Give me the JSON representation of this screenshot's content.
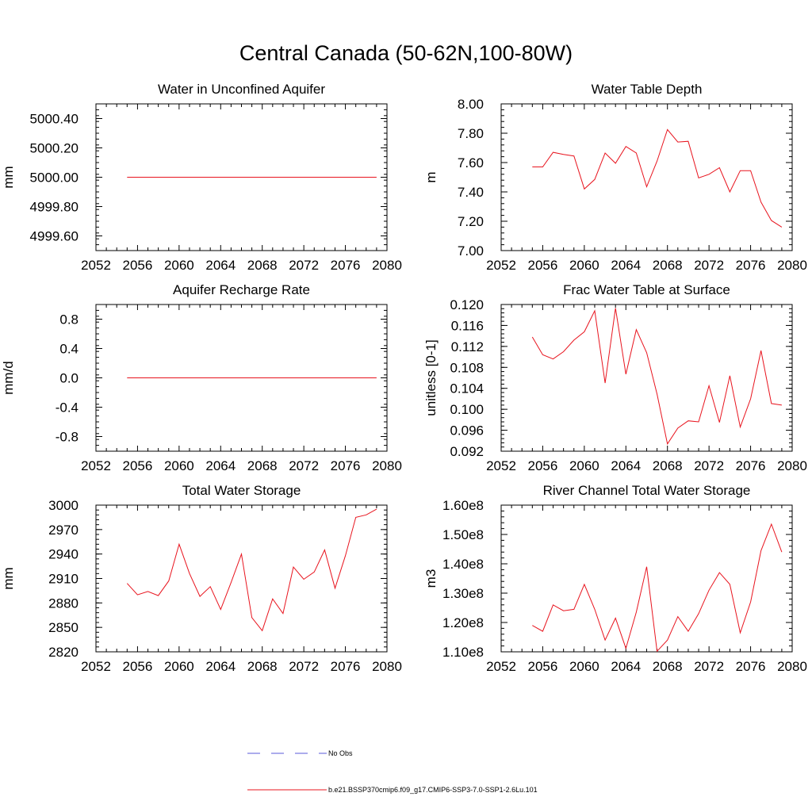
{
  "page": {
    "title": "Central Canada (50-62N,100-80W)"
  },
  "legend": {
    "items": [
      {
        "label": "No Obs",
        "color": "#5a5ad8",
        "dash": "dashed"
      },
      {
        "label": "b.e21.BSSP370cmip6.f09_g17.CMIP6-SSP3-7.0-SSP1-2.6Lu.101",
        "color": "#e8141e",
        "dash": "solid"
      }
    ]
  },
  "chart_data": [
    {
      "type": "line",
      "title": "Water in Unconfined Aquifer",
      "ylabel": "mm",
      "xlim": [
        2052,
        2080
      ],
      "ylim": [
        4999.5,
        5000.5
      ],
      "xticks": [
        "2052",
        "2056",
        "2060",
        "2064",
        "2068",
        "2072",
        "2076",
        "2080"
      ],
      "yticks": [
        "4999.60",
        "4999.80",
        "5000.00",
        "5000.20",
        "5000.40"
      ],
      "ytick_values": [
        4999.6,
        4999.8,
        5000.0,
        5000.2,
        5000.4
      ],
      "series": [
        {
          "color": "#e8141e",
          "x": [
            2055,
            2056,
            2057,
            2058,
            2059,
            2060,
            2061,
            2062,
            2063,
            2064,
            2065,
            2066,
            2067,
            2068,
            2069,
            2070,
            2071,
            2072,
            2073,
            2074,
            2075,
            2076,
            2077,
            2078,
            2079
          ],
          "y": [
            5000,
            5000,
            5000,
            5000,
            5000,
            5000,
            5000,
            5000,
            5000,
            5000,
            5000,
            5000,
            5000,
            5000,
            5000,
            5000,
            5000,
            5000,
            5000,
            5000,
            5000,
            5000,
            5000,
            5000,
            5000
          ]
        }
      ]
    },
    {
      "type": "line",
      "title": "Water Table Depth",
      "ylabel": "m",
      "xlim": [
        2052,
        2080
      ],
      "ylim": [
        7.0,
        8.0
      ],
      "xticks": [
        "2052",
        "2056",
        "2060",
        "2064",
        "2068",
        "2072",
        "2076",
        "2080"
      ],
      "yticks": [
        "7.00",
        "7.20",
        "7.40",
        "7.60",
        "7.80",
        "8.00"
      ],
      "ytick_values": [
        7.0,
        7.2,
        7.4,
        7.6,
        7.8,
        8.0
      ],
      "series": [
        {
          "color": "#e8141e",
          "x": [
            2055,
            2056,
            2057,
            2058,
            2059,
            2060,
            2061,
            2062,
            2063,
            2064,
            2065,
            2066,
            2067,
            2068,
            2069,
            2070,
            2071,
            2072,
            2073,
            2074,
            2075,
            2076,
            2077,
            2078,
            2079
          ],
          "y": [
            7.57,
            7.57,
            7.67,
            7.655,
            7.645,
            7.42,
            7.485,
            7.665,
            7.595,
            7.71,
            7.665,
            7.435,
            7.61,
            7.825,
            7.74,
            7.745,
            7.495,
            7.52,
            7.565,
            7.4,
            7.545,
            7.545,
            7.33,
            7.205,
            7.16
          ]
        }
      ]
    },
    {
      "type": "line",
      "title": "Aquifer Recharge Rate",
      "ylabel": "mm/d",
      "xlim": [
        2052,
        2080
      ],
      "ylim": [
        -1.0,
        1.0
      ],
      "xticks": [
        "2052",
        "2056",
        "2060",
        "2064",
        "2068",
        "2072",
        "2076",
        "2080"
      ],
      "yticks": [
        "-0.8",
        "-0.4",
        "0.0",
        "0.4",
        "0.8"
      ],
      "ytick_values": [
        -0.8,
        -0.4,
        0.0,
        0.4,
        0.8
      ],
      "series": [
        {
          "color": "#e8141e",
          "x": [
            2055,
            2056,
            2057,
            2058,
            2059,
            2060,
            2061,
            2062,
            2063,
            2064,
            2065,
            2066,
            2067,
            2068,
            2069,
            2070,
            2071,
            2072,
            2073,
            2074,
            2075,
            2076,
            2077,
            2078,
            2079
          ],
          "y": [
            0,
            0,
            0,
            0,
            0,
            0,
            0,
            0,
            0,
            0,
            0,
            0,
            0,
            0,
            0,
            0,
            0,
            0,
            0,
            0,
            0,
            0,
            0,
            0,
            0
          ]
        }
      ]
    },
    {
      "type": "line",
      "title": "Frac Water Table at Surface",
      "ylabel": "unitless [0-1]",
      "xlim": [
        2052,
        2080
      ],
      "ylim": [
        0.092,
        0.12
      ],
      "xticks": [
        "2052",
        "2056",
        "2060",
        "2064",
        "2068",
        "2072",
        "2076",
        "2080"
      ],
      "yticks": [
        "0.092",
        "0.096",
        "0.100",
        "0.104",
        "0.108",
        "0.112",
        "0.116",
        "0.120"
      ],
      "ytick_values": [
        0.092,
        0.096,
        0.1,
        0.104,
        0.108,
        0.112,
        0.116,
        0.12
      ],
      "series": [
        {
          "color": "#e8141e",
          "x": [
            2055,
            2056,
            2057,
            2058,
            2059,
            2060,
            2061,
            2062,
            2063,
            2064,
            2065,
            2066,
            2067,
            2068,
            2069,
            2070,
            2071,
            2072,
            2073,
            2074,
            2075,
            2076,
            2077,
            2078,
            2079
          ],
          "y": [
            0.1138,
            0.1104,
            0.1096,
            0.111,
            0.1132,
            0.1148,
            0.1188,
            0.105,
            0.1193,
            0.1067,
            0.1152,
            0.1108,
            0.1029,
            0.0934,
            0.0964,
            0.0978,
            0.0976,
            0.1045,
            0.0975,
            0.1064,
            0.0966,
            0.102,
            0.1112,
            0.1011,
            0.1008
          ]
        }
      ]
    },
    {
      "type": "line",
      "title": "Total Water Storage",
      "ylabel": "mm",
      "xlim": [
        2052,
        2080
      ],
      "ylim": [
        2820,
        3000
      ],
      "xticks": [
        "2052",
        "2056",
        "2060",
        "2064",
        "2068",
        "2072",
        "2076",
        "2080"
      ],
      "yticks": [
        "2820",
        "2850",
        "2880",
        "2910",
        "2940",
        "2970",
        "3000"
      ],
      "ytick_values": [
        2820,
        2850,
        2880,
        2910,
        2940,
        2970,
        3000
      ],
      "series": [
        {
          "color": "#e8141e",
          "x": [
            2055,
            2056,
            2057,
            2058,
            2059,
            2060,
            2061,
            2062,
            2063,
            2064,
            2065,
            2066,
            2067,
            2068,
            2069,
            2070,
            2071,
            2072,
            2073,
            2074,
            2075,
            2076,
            2077,
            2078,
            2079
          ],
          "y": [
            2904,
            2890,
            2894,
            2889,
            2907,
            2952,
            2916,
            2888,
            2900,
            2872,
            2905,
            2940,
            2862,
            2846,
            2885,
            2867,
            2924,
            2909,
            2918,
            2945,
            2898,
            2938,
            2985,
            2988,
            2995
          ]
        }
      ]
    },
    {
      "type": "line",
      "title": "River Channel Total Water Storage",
      "ylabel": "m3",
      "xlim": [
        2052,
        2080
      ],
      "ylim": [
        110000000.0,
        160000000.0
      ],
      "xticks": [
        "2052",
        "2056",
        "2060",
        "2064",
        "2068",
        "2072",
        "2076",
        "2080"
      ],
      "yticks": [
        "1.10e8",
        "1.20e8",
        "1.30e8",
        "1.40e8",
        "1.50e8",
        "1.60e8"
      ],
      "ytick_values": [
        110000000.0,
        120000000.0,
        130000000.0,
        140000000.0,
        150000000.0,
        160000000.0
      ],
      "series": [
        {
          "color": "#e8141e",
          "x": [
            2055,
            2056,
            2057,
            2058,
            2059,
            2060,
            2061,
            2062,
            2063,
            2064,
            2065,
            2066,
            2067,
            2068,
            2069,
            2070,
            2071,
            2072,
            2073,
            2074,
            2075,
            2076,
            2077,
            2078,
            2079
          ],
          "y": [
            119000000.0,
            117000000.0,
            126000000.0,
            124000000.0,
            124500000.0,
            133000000.0,
            124500000.0,
            114000000.0,
            121500000.0,
            111200000.0,
            123500000.0,
            139000000.0,
            110200000.0,
            114000000.0,
            122000000.0,
            117000000.0,
            123000000.0,
            131000000.0,
            137000000.0,
            133000000.0,
            116500000.0,
            127000000.0,
            144500000.0,
            153500000.0,
            144000000.0
          ]
        }
      ]
    }
  ]
}
